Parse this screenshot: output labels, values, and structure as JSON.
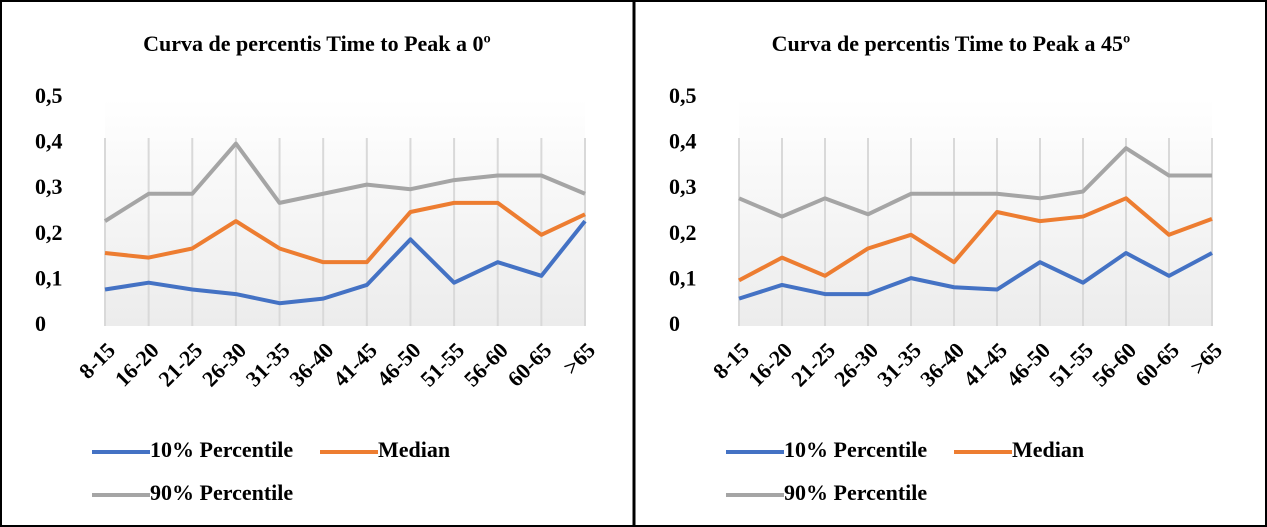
{
  "chart_data": [
    {
      "type": "line",
      "title": "Curva de percentis Time to Peak a 0º",
      "categories": [
        "8-15",
        "16-20",
        "21-25",
        "26-30",
        "31-35",
        "36-40",
        "41-45",
        "46-50",
        "51-55",
        "56-60",
        "60-65",
        ">65"
      ],
      "series": [
        {
          "name": "10% Percentile",
          "color": "#4472c4",
          "values": [
            0.08,
            0.095,
            0.08,
            0.07,
            0.05,
            0.06,
            0.09,
            0.19,
            0.095,
            0.14,
            0.11,
            0.23
          ]
        },
        {
          "name": "Median",
          "color": "#ed7d31",
          "values": [
            0.16,
            0.15,
            0.17,
            0.23,
            0.17,
            0.14,
            0.14,
            0.25,
            0.27,
            0.27,
            0.2,
            0.245
          ]
        },
        {
          "name": "90% Percentile",
          "color": "#a5a5a5",
          "values": [
            0.23,
            0.29,
            0.29,
            0.4,
            0.27,
            0.29,
            0.31,
            0.3,
            0.32,
            0.33,
            0.33,
            0.29
          ]
        }
      ],
      "ylim": [
        0,
        0.5
      ],
      "yticks": [
        0,
        {
          "value": 0.1,
          "label": "0,1"
        },
        {
          "value": 0.2,
          "label": "0,2"
        },
        {
          "value": 0.3,
          "label": "0,3"
        },
        {
          "value": 0.4,
          "label": "0,4"
        },
        {
          "value": 0.5,
          "label": "0,5"
        }
      ],
      "legend": "bottom"
    },
    {
      "type": "line",
      "title": "Curva de percentis Time to Peak a 45º",
      "categories": [
        "8-15",
        "16-20",
        "21-25",
        "26-30",
        "31-35",
        "36-40",
        "41-45",
        "46-50",
        "51-55",
        "56-60",
        "60-65",
        ">65"
      ],
      "series": [
        {
          "name": "10% Percentile",
          "color": "#4472c4",
          "values": [
            0.06,
            0.09,
            0.07,
            0.07,
            0.105,
            0.085,
            0.08,
            0.14,
            0.095,
            0.16,
            0.11,
            0.16
          ]
        },
        {
          "name": "Median",
          "color": "#ed7d31",
          "values": [
            0.1,
            0.15,
            0.11,
            0.17,
            0.2,
            0.14,
            0.25,
            0.23,
            0.24,
            0.28,
            0.2,
            0.235
          ]
        },
        {
          "name": "90% Percentile",
          "color": "#a5a5a5",
          "values": [
            0.28,
            0.24,
            0.28,
            0.245,
            0.29,
            0.29,
            0.29,
            0.28,
            0.295,
            0.39,
            0.33,
            0.33
          ]
        }
      ],
      "ylim": [
        0,
        0.5
      ],
      "yticks": [
        0,
        {
          "value": 0.1,
          "label": "0,1"
        },
        {
          "value": 0.2,
          "label": "0,2"
        },
        {
          "value": 0.3,
          "label": "0,3"
        },
        {
          "value": 0.4,
          "label": "0,4"
        },
        {
          "value": 0.5,
          "label": "0,5"
        }
      ],
      "legend": "bottom"
    }
  ]
}
